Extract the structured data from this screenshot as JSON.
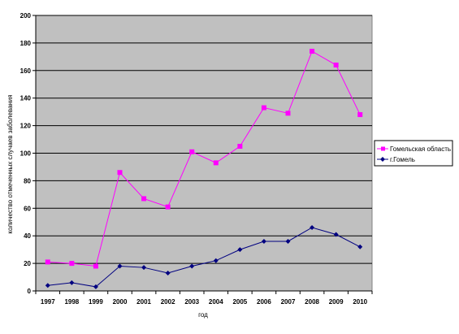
{
  "chart_data": {
    "type": "line",
    "x": [
      "1997",
      "1998",
      "1999",
      "2000",
      "2001",
      "2002",
      "2003",
      "2004",
      "2005",
      "2006",
      "2007",
      "2008",
      "2009",
      "2010"
    ],
    "series": [
      {
        "name": "Гомельская область",
        "color": "#ff00ff",
        "marker": "square",
        "values": [
          21,
          20,
          18,
          86,
          67,
          61,
          101,
          93,
          105,
          133,
          129,
          174,
          164,
          128
        ]
      },
      {
        "name": "г.Гомель",
        "color": "#000080",
        "marker": "diamond",
        "values": [
          4,
          6,
          3,
          18,
          17,
          13,
          18,
          22,
          30,
          36,
          36,
          46,
          41,
          32
        ]
      }
    ],
    "xlabel": "год",
    "ylabel": "количество отмеченных случаев заболевания",
    "ylim": [
      0,
      200
    ],
    "yticks": [
      "0",
      "20",
      "40",
      "60",
      "80",
      "100",
      "120",
      "140",
      "160",
      "180",
      "200"
    ],
    "grid": "horizontal",
    "plot_background": "#c0c0c0",
    "legend_position": "right"
  }
}
